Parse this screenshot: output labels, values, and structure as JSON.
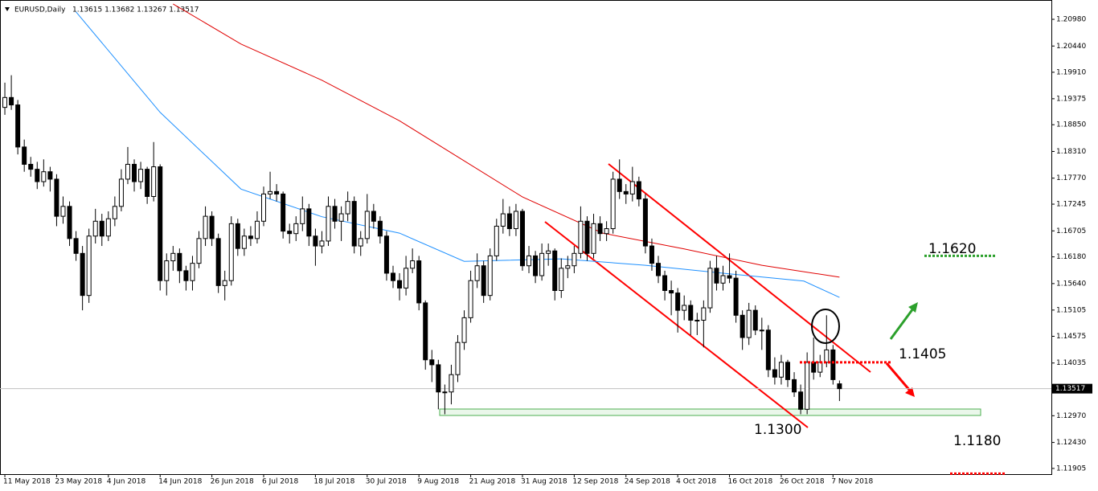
{
  "chart_data": {
    "type": "candlestick",
    "title": "EURUSD,Daily",
    "ohlc_text": "1.13615 1.13682 1.13267 1.13517",
    "xlim": [
      -0.75,
      161.75
    ],
    "ylim": [
      1.1179,
      1.2137
    ],
    "xticks": [
      {
        "value": 0,
        "label": "11 May 2018"
      },
      {
        "value": 8,
        "label": "23 May 2018"
      },
      {
        "value": 16,
        "label": "4 Jun 2018"
      },
      {
        "value": 24,
        "label": "14 Jun 2018"
      },
      {
        "value": 32,
        "label": "26 Jun 2018"
      },
      {
        "value": 40,
        "label": "6 Jul 2018"
      },
      {
        "value": 48,
        "label": "18 Jul 2018"
      },
      {
        "value": 56,
        "label": "30 Jul 2018"
      },
      {
        "value": 64,
        "label": "9 Aug 2018"
      },
      {
        "value": 72,
        "label": "21 Aug 2018"
      },
      {
        "value": 80,
        "label": "31 Aug 2018"
      },
      {
        "value": 88,
        "label": "12 Sep 2018"
      },
      {
        "value": 96,
        "label": "24 Sep 2018"
      },
      {
        "value": 104,
        "label": "4 Oct 2018"
      },
      {
        "value": 112,
        "label": "16 Oct 2018"
      },
      {
        "value": 120,
        "label": "26 Oct 2018"
      },
      {
        "value": 128,
        "label": "7 Nov 2018"
      }
    ],
    "yticks": [
      {
        "value": 1.2098,
        "label": "1.20980"
      },
      {
        "value": 1.2044,
        "label": "1.20440"
      },
      {
        "value": 1.1991,
        "label": "1.19910"
      },
      1.19375,
      {
        "value": 1.1885,
        "label": "1.18850"
      },
      {
        "value": 1.1831,
        "label": "1.18310"
      },
      {
        "value": 1.1777,
        "label": "1.17770"
      },
      1.17245,
      1.16705,
      {
        "value": 1.1618,
        "label": "1.16180"
      },
      {
        "value": 1.1564,
        "label": "1.15640"
      },
      1.15105,
      1.14575,
      1.14035,
      {
        "value": 1.1297,
        "label": "1.12970"
      },
      {
        "value": 1.1243,
        "label": "1.12430"
      },
      1.11905
    ],
    "current_price": 1.13517,
    "up_color": "#ffffff",
    "down_color": "#000000",
    "candles": [
      [
        1.192,
        1.197,
        1.1905,
        1.194
      ],
      [
        1.194,
        1.1985,
        1.1915,
        1.1925
      ],
      [
        1.1925,
        1.1935,
        1.1825,
        1.184
      ],
      [
        1.184,
        1.1855,
        1.179,
        1.1805
      ],
      [
        1.1805,
        1.182,
        1.178,
        1.1795
      ],
      [
        1.1795,
        1.181,
        1.1755,
        1.177
      ],
      [
        1.177,
        1.1815,
        1.176,
        1.179
      ],
      [
        1.179,
        1.18,
        1.175,
        1.1775
      ],
      [
        1.1775,
        1.1785,
        1.168,
        1.17
      ],
      [
        1.17,
        1.174,
        1.1685,
        1.172
      ],
      [
        1.172,
        1.173,
        1.164,
        1.1655
      ],
      [
        1.1655,
        1.167,
        1.161,
        1.1625
      ],
      [
        1.1625,
        1.164,
        1.151,
        1.154
      ],
      [
        1.154,
        1.1675,
        1.1525,
        1.166
      ],
      [
        1.166,
        1.1715,
        1.1645,
        1.169
      ],
      [
        1.169,
        1.1705,
        1.164,
        1.166
      ],
      [
        1.166,
        1.171,
        1.165,
        1.1695
      ],
      [
        1.1695,
        1.174,
        1.168,
        1.172
      ],
      [
        1.172,
        1.1795,
        1.171,
        1.1775
      ],
      [
        1.1775,
        1.184,
        1.1765,
        1.1805
      ],
      [
        1.1805,
        1.1815,
        1.175,
        1.177
      ],
      [
        1.177,
        1.181,
        1.1755,
        1.1795
      ],
      [
        1.1795,
        1.18,
        1.1725,
        1.174
      ],
      [
        1.174,
        1.185,
        1.173,
        1.18
      ],
      [
        1.18,
        1.1805,
        1.155,
        1.157
      ],
      [
        1.157,
        1.1625,
        1.154,
        1.161
      ],
      [
        1.161,
        1.164,
        1.159,
        1.1625
      ],
      [
        1.1625,
        1.1635,
        1.1565,
        1.159
      ],
      [
        1.159,
        1.16,
        1.155,
        1.157
      ],
      [
        1.157,
        1.162,
        1.155,
        1.1605
      ],
      [
        1.1605,
        1.167,
        1.1595,
        1.1655
      ],
      [
        1.1655,
        1.172,
        1.164,
        1.17
      ],
      [
        1.17,
        1.171,
        1.164,
        1.1655
      ],
      [
        1.1655,
        1.1665,
        1.1545,
        1.156
      ],
      [
        1.156,
        1.159,
        1.153,
        1.157
      ],
      [
        1.157,
        1.17,
        1.156,
        1.1685
      ],
      [
        1.1685,
        1.1695,
        1.162,
        1.1635
      ],
      [
        1.1635,
        1.1675,
        1.162,
        1.166
      ],
      [
        1.166,
        1.168,
        1.164,
        1.1655
      ],
      [
        1.1655,
        1.171,
        1.1645,
        1.169
      ],
      [
        1.169,
        1.176,
        1.168,
        1.1745
      ],
      [
        1.1745,
        1.179,
        1.1735,
        1.175
      ],
      [
        1.175,
        1.1765,
        1.173,
        1.1745
      ],
      [
        1.1745,
        1.175,
        1.1655,
        1.167
      ],
      [
        1.167,
        1.1685,
        1.1645,
        1.1665
      ],
      [
        1.1665,
        1.17,
        1.165,
        1.1685
      ],
      [
        1.1685,
        1.174,
        1.167,
        1.1715
      ],
      [
        1.1715,
        1.1725,
        1.164,
        1.166
      ],
      [
        1.166,
        1.1675,
        1.16,
        1.164
      ],
      [
        1.164,
        1.167,
        1.1625,
        1.165
      ],
      [
        1.165,
        1.174,
        1.164,
        1.172
      ],
      [
        1.172,
        1.1735,
        1.1675,
        1.169
      ],
      [
        1.169,
        1.172,
        1.165,
        1.1705
      ],
      [
        1.1705,
        1.175,
        1.169,
        1.173
      ],
      [
        1.173,
        1.174,
        1.1625,
        1.164
      ],
      [
        1.164,
        1.167,
        1.162,
        1.1655
      ],
      [
        1.1655,
        1.1745,
        1.1645,
        1.171
      ],
      [
        1.171,
        1.1725,
        1.1675,
        1.169
      ],
      [
        1.169,
        1.17,
        1.1645,
        1.166
      ],
      [
        1.166,
        1.167,
        1.157,
        1.1585
      ],
      [
        1.1585,
        1.16,
        1.1555,
        1.157
      ],
      [
        1.157,
        1.1585,
        1.153,
        1.1555
      ],
      [
        1.1555,
        1.162,
        1.154,
        1.1595
      ],
      [
        1.1595,
        1.1635,
        1.1585,
        1.161
      ],
      [
        1.161,
        1.162,
        1.151,
        1.1525
      ],
      [
        1.1525,
        1.153,
        1.139,
        1.141
      ],
      [
        1.141,
        1.143,
        1.1365,
        1.14
      ],
      [
        1.14,
        1.141,
        1.131,
        1.1345
      ],
      [
        1.1345,
        1.136,
        1.13,
        1.1345
      ],
      [
        1.1345,
        1.14,
        1.132,
        1.138
      ],
      [
        1.138,
        1.146,
        1.1365,
        1.1445
      ],
      [
        1.1445,
        1.151,
        1.143,
        1.1495
      ],
      [
        1.1495,
        1.159,
        1.1485,
        1.157
      ],
      [
        1.157,
        1.1625,
        1.1555,
        1.16
      ],
      [
        1.16,
        1.161,
        1.1525,
        1.154
      ],
      [
        1.154,
        1.1635,
        1.153,
        1.162
      ],
      [
        1.162,
        1.1695,
        1.161,
        1.168
      ],
      [
        1.168,
        1.1735,
        1.1665,
        1.1705
      ],
      [
        1.1705,
        1.172,
        1.166,
        1.1675
      ],
      [
        1.1675,
        1.1725,
        1.166,
        1.171
      ],
      [
        1.171,
        1.1715,
        1.159,
        1.16
      ],
      [
        1.16,
        1.164,
        1.1585,
        1.162
      ],
      [
        1.162,
        1.163,
        1.1565,
        1.158
      ],
      [
        1.158,
        1.1645,
        1.157,
        1.1625
      ],
      [
        1.1625,
        1.1645,
        1.16,
        1.163
      ],
      [
        1.163,
        1.1635,
        1.153,
        1.155
      ],
      [
        1.155,
        1.1615,
        1.1535,
        1.1595
      ],
      [
        1.1595,
        1.162,
        1.1575,
        1.16
      ],
      [
        1.16,
        1.164,
        1.1585,
        1.1625
      ],
      [
        1.1625,
        1.172,
        1.1615,
        1.169
      ],
      [
        1.169,
        1.17,
        1.161,
        1.1625
      ],
      [
        1.1625,
        1.1705,
        1.1615,
        1.1685
      ],
      [
        1.1685,
        1.17,
        1.165,
        1.1665
      ],
      [
        1.1665,
        1.169,
        1.165,
        1.1675
      ],
      [
        1.1675,
        1.179,
        1.1665,
        1.1775
      ],
      [
        1.1775,
        1.1815,
        1.1735,
        1.175
      ],
      [
        1.175,
        1.1765,
        1.1725,
        1.1745
      ],
      [
        1.1745,
        1.18,
        1.173,
        1.177
      ],
      [
        1.177,
        1.178,
        1.172,
        1.1735
      ],
      [
        1.1735,
        1.1745,
        1.1625,
        1.164
      ],
      [
        1.164,
        1.1655,
        1.159,
        1.1605
      ],
      [
        1.1605,
        1.162,
        1.1565,
        1.158
      ],
      [
        1.158,
        1.159,
        1.153,
        1.155
      ],
      [
        1.155,
        1.157,
        1.15,
        1.1545
      ],
      [
        1.1545,
        1.1555,
        1.1465,
        1.151
      ],
      [
        1.151,
        1.154,
        1.149,
        1.152
      ],
      [
        1.152,
        1.153,
        1.146,
        1.149
      ],
      [
        1.149,
        1.1505,
        1.146,
        1.149
      ],
      [
        1.149,
        1.153,
        1.1435,
        1.1515
      ],
      [
        1.1515,
        1.161,
        1.1505,
        1.1595
      ],
      [
        1.1595,
        1.162,
        1.155,
        1.1565
      ],
      [
        1.1565,
        1.16,
        1.155,
        1.158
      ],
      [
        1.158,
        1.1625,
        1.1565,
        1.1575
      ],
      [
        1.1575,
        1.159,
        1.1485,
        1.15
      ],
      [
        1.15,
        1.151,
        1.143,
        1.1455
      ],
      [
        1.1455,
        1.1525,
        1.144,
        1.151
      ],
      [
        1.151,
        1.152,
        1.146,
        1.147
      ],
      [
        1.147,
        1.1495,
        1.143,
        1.147
      ],
      [
        1.147,
        1.148,
        1.1375,
        1.139
      ],
      [
        1.139,
        1.1415,
        1.136,
        1.1375
      ],
      [
        1.1375,
        1.142,
        1.136,
        1.1405
      ],
      [
        1.1405,
        1.141,
        1.1355,
        1.137
      ],
      [
        1.137,
        1.1385,
        1.1335,
        1.1345
      ],
      [
        1.1345,
        1.136,
        1.13,
        1.131
      ],
      [
        1.131,
        1.1425,
        1.13,
        1.1405
      ],
      [
        1.1405,
        1.1455,
        1.137,
        1.1385
      ],
      [
        1.1385,
        1.142,
        1.1375,
        1.1405
      ],
      [
        1.1405,
        1.15,
        1.1395,
        1.143
      ],
      [
        1.143,
        1.144,
        1.136,
        1.137
      ],
      [
        1.13615,
        1.13682,
        1.13267,
        1.13517
      ]
    ],
    "series": [
      {
        "color": "#1e90ff",
        "x": [
          11,
          24,
          36.5,
          49,
          61,
          71,
          86,
          99,
          111,
          123.5,
          129
        ],
        "values": [
          1.2113,
          1.191,
          1.1755,
          1.1699,
          1.1666,
          1.1609,
          1.1614,
          1.1601,
          1.1585,
          1.1569,
          1.1536
        ]
      },
      {
        "color": "#e00000",
        "x": [
          26,
          36.5,
          49,
          61,
          71,
          80,
          92.4,
          105,
          117,
          129
        ],
        "values": [
          1.2129,
          1.2048,
          1.1975,
          1.1893,
          1.1812,
          1.1739,
          1.1666,
          1.1634,
          1.1601,
          1.1577
        ]
      }
    ],
    "annotations": [
      {
        "value": 1.162,
        "label": "1.1620",
        "color": "#2ca02c"
      },
      {
        "value": 1.1405,
        "label": "1.1405",
        "color": "#ff0000"
      },
      {
        "value": 1.13,
        "label": "1.1300"
      },
      {
        "value": 1.118,
        "label": "1.1180",
        "color": "#ff0000"
      }
    ]
  }
}
